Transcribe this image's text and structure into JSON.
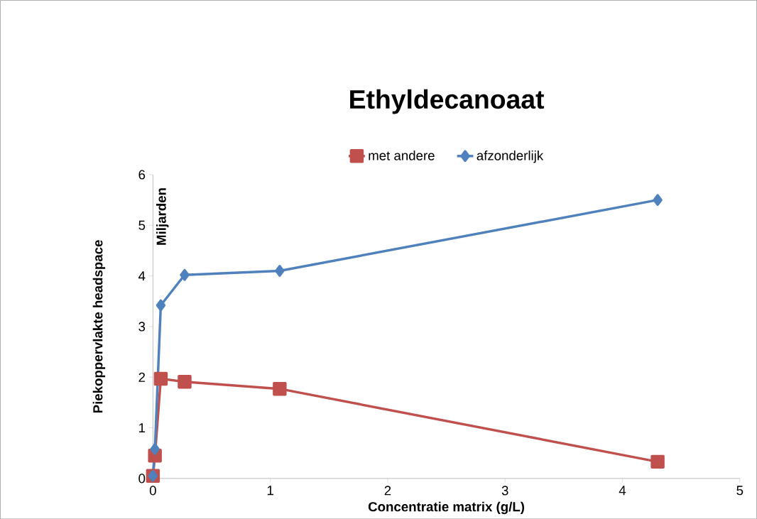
{
  "chart_data": {
    "type": "line",
    "title": "Ethyldecanoaat",
    "xlabel": "Concentratie matrix (g/L)",
    "ylabel": "Piekoppervlakte headspace",
    "annotations": [
      "Miljarden"
    ],
    "x": [
      0,
      0.017,
      0.067,
      0.27,
      1.08,
      4.3
    ],
    "series": [
      {
        "name": "met andere",
        "color": "#c0504d",
        "marker": "square",
        "values": [
          0.05,
          0.45,
          1.97,
          1.91,
          1.77,
          0.33
        ]
      },
      {
        "name": "afzonderlijk",
        "color": "#4f81bd",
        "marker": "diamond",
        "values": [
          0.05,
          0.58,
          3.42,
          4.02,
          4.1,
          5.5
        ]
      }
    ],
    "xlim": [
      0,
      5
    ],
    "xticks": [
      0,
      1,
      2,
      3,
      4,
      5
    ],
    "ylim": [
      0,
      6
    ],
    "yticks": [
      0,
      1,
      2,
      3,
      4,
      5,
      6
    ],
    "grid": false,
    "legend": "top",
    "line_style": "solid"
  }
}
